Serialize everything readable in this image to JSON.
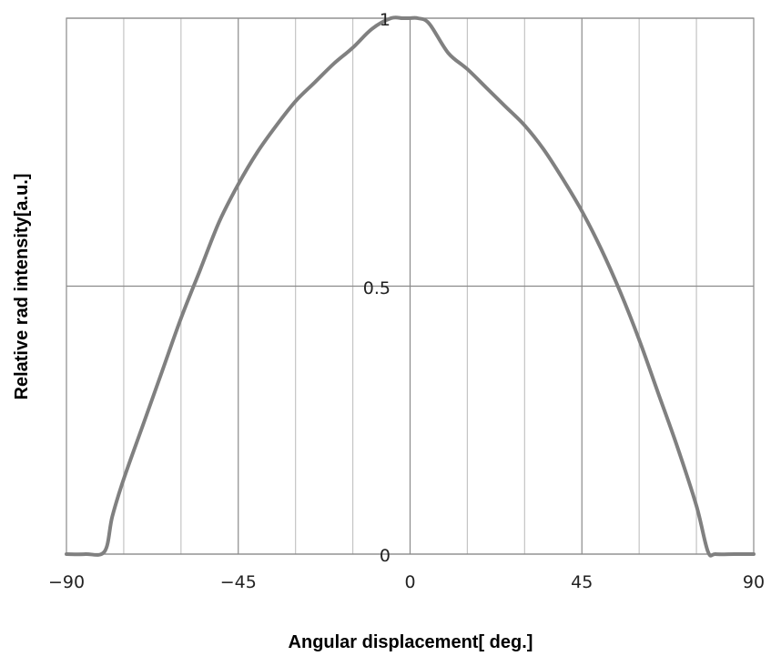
{
  "chart_data": {
    "type": "line",
    "title": "",
    "xlabel": "Angular displacement[ deg.]",
    "ylabel": "Relative rad intensity[a.u.]",
    "xlim": [
      -90,
      90
    ],
    "ylim": [
      0,
      1
    ],
    "x_ticks": [
      -90,
      -45,
      0,
      45,
      90
    ],
    "x_tick_labels": [
      "−90",
      "−45",
      "0",
      "45",
      "90"
    ],
    "y_ticks": [
      0,
      0.5,
      1
    ],
    "y_tick_labels": [
      "0",
      "0.5",
      "1"
    ],
    "x_minor_grid_step": 15,
    "grid": true,
    "legend": "none",
    "line_color": "#808080",
    "series": [
      {
        "x": [
          -90,
          -85,
          -80,
          -78,
          -75,
          -70,
          -65,
          -60,
          -55,
          -50,
          -45,
          -40,
          -35,
          -30,
          -25,
          -20,
          -15,
          -10,
          -5,
          -2,
          0,
          2,
          5,
          10,
          15,
          20,
          25,
          30,
          35,
          40,
          45,
          50,
          55,
          60,
          65,
          70,
          75,
          78,
          80,
          85,
          90
        ],
        "values": [
          0,
          0,
          0.005,
          0.07,
          0.14,
          0.24,
          0.34,
          0.44,
          0.53,
          0.62,
          0.69,
          0.75,
          0.8,
          0.845,
          0.88,
          0.915,
          0.945,
          0.98,
          1.0,
          1.0,
          1.0,
          1.0,
          0.99,
          0.935,
          0.905,
          0.87,
          0.835,
          0.8,
          0.755,
          0.7,
          0.64,
          0.57,
          0.49,
          0.4,
          0.3,
          0.2,
          0.09,
          0.005,
          0,
          0,
          0
        ]
      }
    ]
  }
}
